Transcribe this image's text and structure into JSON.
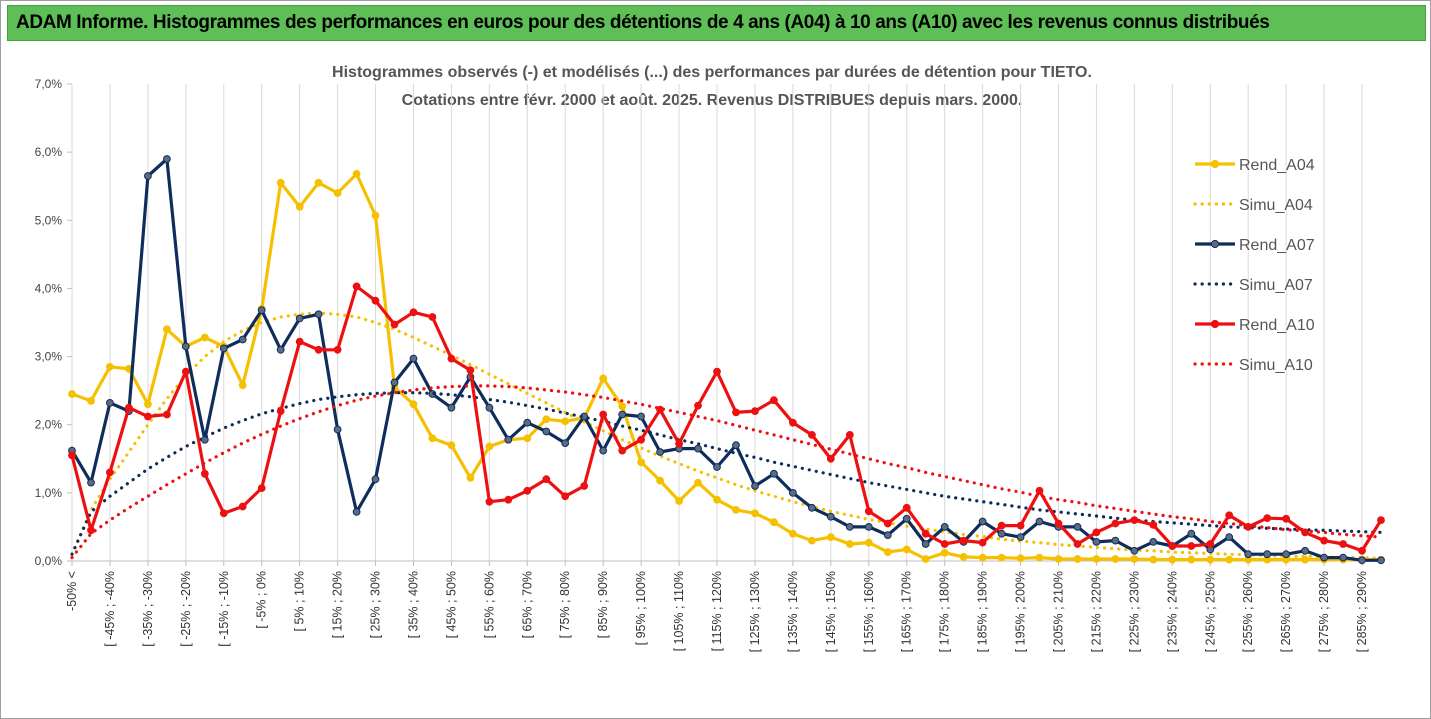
{
  "banner": {
    "title": "ADAM Informe. Histogrammes des performances en euros pour des détentions de 4 ans (A04) à 10 ans (A10) avec les revenus connus distribués"
  },
  "chart_data": {
    "type": "line",
    "title": "Histogrammes observés (-)  et modélisés (...) des performances par durées de détention pour TIETO.",
    "subtitle": "Cotations entre févr. 2000 et août. 2025. Revenus DISTRIBUES depuis mars. 2000.",
    "ylim": [
      0,
      7
    ],
    "yticks": [
      "0,0%",
      "1,0%",
      "2,0%",
      "3,0%",
      "4,0%",
      "5,0%",
      "6,0%",
      "7,0%"
    ],
    "grid": "vertical",
    "legend_position": "right",
    "x": [
      "-50% <",
      "[ -50% ; -45%",
      "[ -45% ; -40%",
      "[ -40% ; -35%",
      "[ -35% ; -30%",
      "[ -30% ; -25%",
      "[ -25% ; -20%",
      "[ -20% ; -15%",
      "[ -15% ; -10%",
      "[ -10% ; -5%",
      "[ -5% ; 0%",
      "[ 0% ; 5%",
      "[ 5% ; 10%",
      "[ 10% ; 15%",
      "[ 15% ; 20%",
      "[ 20% ; 25%",
      "[ 25% ; 30%",
      "[ 30% ; 35%",
      "[ 35% ; 40%",
      "[ 40% ; 45%",
      "[ 45% ; 50%",
      "[ 50% ; 55%",
      "[ 55% ; 60%",
      "[ 60% ; 65%",
      "[ 65% ; 70%",
      "[ 70% ; 75%",
      "[ 75% ; 80%",
      "[ 80% ; 85%",
      "[ 85% ; 90%",
      "[ 90% ; 95%",
      "[ 95% ; 100%",
      "[ 100% ; 105%",
      "[ 105% ; 110%",
      "[ 110% ; 115%",
      "[ 115% ; 120%",
      "[ 120% ; 125%",
      "[ 125% ; 130%",
      "[ 130% ; 135%",
      "[ 135% ; 140%",
      "[ 140% ; 145%",
      "[ 145% ; 150%",
      "[ 150% ; 155%",
      "[ 155% ; 160%",
      "[ 160% ; 165%",
      "[ 165% ; 170%",
      "[ 170% ; 175%",
      "[ 175% ; 180%",
      "[ 180% ; 185%",
      "[ 185% ; 190%",
      "[ 190% ; 195%",
      "[ 195% ; 200%",
      "[ 200% ; 205%",
      "[ 205% ; 210%",
      "[ 210% ; 215%",
      "[ 215% ; 220%",
      "[ 220% ; 225%",
      "[ 225% ; 230%",
      "[ 230% ; 235%",
      "[ 235% ; 240%",
      "[ 240% ; 245%",
      "[ 245% ; 250%",
      "[ 250% ; 255%",
      "[ 255% ; 260%",
      "[ 260% ; 265%",
      "[ 265% ; 270%",
      "[ 270% ; 275%",
      "[ 275% ; 280%",
      "[ 280% ; 285%",
      "[ 285% ; 290%",
      "[ 290% ; 295%"
    ],
    "x_visible_labels": [
      "-50% <",
      "[ -45% ; -40%",
      "[ -35% ; -30%",
      "[ -25% ; -20%",
      "[ -15% ; -10%",
      "[ -5% ; 0%",
      "[ 5% ; 10%",
      "[ 15% ; 20%",
      "[ 25% ; 30%",
      "[ 35% ; 40%",
      "[ 45% ; 50%",
      "[ 55% ; 60%",
      "[ 65% ; 70%",
      "[ 75% ; 80%",
      "[ 85% ; 90%",
      "[ 95% ; 100%",
      "[ 105% ; 110%",
      "[ 115% ; 120%",
      "[ 125% ; 130%",
      "[ 135% ; 140%",
      "[ 145% ; 150%",
      "[ 155% ; 160%",
      "[ 165% ; 170%",
      "[ 175% ; 180%",
      "[ 185% ; 190%",
      "[ 195% ; 200%",
      "[ 205% ; 210%",
      "[ 215% ; 220%",
      "[ 225% ; 230%",
      "[ 235% ; 240%",
      "[ 245% ; 250%",
      "[ 255% ; 260%",
      "[ 265% ; 270%",
      "[ 275% ; 280%",
      "[ 285% ; 290%"
    ],
    "series": [
      {
        "name": "Rend_A04",
        "style": "solid",
        "color": "#f5c000",
        "values": [
          2.45,
          2.35,
          2.85,
          2.82,
          2.3,
          3.4,
          3.15,
          3.28,
          3.15,
          2.58,
          3.7,
          5.55,
          5.2,
          5.55,
          5.4,
          5.68,
          5.07,
          2.55,
          2.3,
          1.8,
          1.7,
          1.22,
          1.68,
          1.78,
          1.8,
          2.08,
          2.05,
          2.1,
          2.68,
          2.27,
          1.45,
          1.18,
          0.88,
          1.15,
          0.9,
          0.75,
          0.7,
          0.57,
          0.4,
          0.3,
          0.35,
          0.25,
          0.27,
          0.13,
          0.17,
          0.03,
          0.12,
          0.06,
          0.05,
          0.05,
          0.04,
          0.05,
          0.03,
          0.03,
          0.03,
          0.03,
          0.03,
          0.02,
          0.02,
          0.02,
          0.02,
          0.02,
          0.02,
          0.02,
          0.02,
          0.02,
          0.02,
          0.02,
          0.02,
          0.02
        ]
      },
      {
        "name": "Simu_A04",
        "style": "dotted",
        "color": "#f5c000",
        "values": [
          0.1,
          0.75,
          1.2,
          1.6,
          2.0,
          2.38,
          2.72,
          3.0,
          3.22,
          3.38,
          3.5,
          3.58,
          3.62,
          3.64,
          3.62,
          3.58,
          3.5,
          3.4,
          3.28,
          3.15,
          3.02,
          2.88,
          2.74,
          2.6,
          2.46,
          2.32,
          2.18,
          2.04,
          1.91,
          1.78,
          1.66,
          1.54,
          1.43,
          1.32,
          1.22,
          1.12,
          1.03,
          0.95,
          0.87,
          0.8,
          0.73,
          0.67,
          0.61,
          0.56,
          0.51,
          0.47,
          0.43,
          0.39,
          0.36,
          0.32,
          0.29,
          0.27,
          0.24,
          0.22,
          0.2,
          0.18,
          0.16,
          0.15,
          0.13,
          0.12,
          0.11,
          0.1,
          0.09,
          0.08,
          0.07,
          0.07,
          0.06,
          0.05,
          0.05,
          0.04
        ]
      },
      {
        "name": "Rend_A07",
        "style": "solid",
        "color": "#0f2d5c",
        "values": [
          1.62,
          1.15,
          2.32,
          2.2,
          5.65,
          5.9,
          3.15,
          1.78,
          3.12,
          3.25,
          3.68,
          3.1,
          3.56,
          3.62,
          1.93,
          0.72,
          1.2,
          2.62,
          2.97,
          2.45,
          2.25,
          2.7,
          2.25,
          1.78,
          2.03,
          1.9,
          1.73,
          2.12,
          1.62,
          2.15,
          2.12,
          1.6,
          1.65,
          1.65,
          1.38,
          1.7,
          1.1,
          1.28,
          1.0,
          0.78,
          0.65,
          0.5,
          0.5,
          0.38,
          0.62,
          0.25,
          0.5,
          0.28,
          0.58,
          0.4,
          0.35,
          0.58,
          0.5,
          0.5,
          0.28,
          0.3,
          0.15,
          0.28,
          0.22,
          0.4,
          0.17,
          0.35,
          0.1,
          0.1,
          0.1,
          0.15,
          0.05,
          0.05,
          0.01,
          0.01
        ]
      },
      {
        "name": "Simu_A07",
        "style": "dotted",
        "color": "#0f2d5c",
        "values": [
          0.1,
          0.72,
          0.95,
          1.15,
          1.35,
          1.52,
          1.68,
          1.82,
          1.95,
          2.06,
          2.16,
          2.24,
          2.31,
          2.37,
          2.41,
          2.44,
          2.46,
          2.47,
          2.47,
          2.46,
          2.44,
          2.41,
          2.37,
          2.33,
          2.28,
          2.23,
          2.17,
          2.11,
          2.05,
          1.98,
          1.92,
          1.85,
          1.78,
          1.72,
          1.65,
          1.58,
          1.52,
          1.45,
          1.39,
          1.33,
          1.27,
          1.21,
          1.15,
          1.1,
          1.05,
          1.0,
          0.95,
          0.91,
          0.87,
          0.83,
          0.79,
          0.75,
          0.72,
          0.69,
          0.66,
          0.63,
          0.6,
          0.58,
          0.56,
          0.54,
          0.52,
          0.5,
          0.49,
          0.48,
          0.47,
          0.46,
          0.45,
          0.44,
          0.43,
          0.42
        ]
      },
      {
        "name": "Rend_A10",
        "style": "solid",
        "color": "#ee1010",
        "values": [
          1.55,
          0.45,
          1.3,
          2.25,
          2.12,
          2.15,
          2.78,
          1.28,
          0.7,
          0.8,
          1.07,
          2.2,
          3.22,
          3.1,
          3.1,
          4.03,
          3.82,
          3.47,
          3.65,
          3.58,
          2.97,
          2.8,
          0.87,
          0.9,
          1.03,
          1.2,
          0.95,
          1.1,
          2.15,
          1.62,
          1.78,
          2.22,
          1.72,
          2.28,
          2.78,
          2.18,
          2.2,
          2.36,
          2.03,
          1.85,
          1.5,
          1.85,
          0.73,
          0.55,
          0.78,
          0.4,
          0.25,
          0.3,
          0.27,
          0.52,
          0.52,
          1.03,
          0.55,
          0.25,
          0.42,
          0.55,
          0.6,
          0.53,
          0.22,
          0.22,
          0.25,
          0.67,
          0.5,
          0.63,
          0.62,
          0.42,
          0.3,
          0.25,
          0.15,
          0.6
        ]
      },
      {
        "name": "Simu_A10",
        "style": "dotted",
        "color": "#ee1010",
        "values": [
          0.05,
          0.4,
          0.6,
          0.78,
          0.95,
          1.12,
          1.28,
          1.44,
          1.59,
          1.73,
          1.86,
          1.98,
          2.09,
          2.19,
          2.28,
          2.36,
          2.42,
          2.47,
          2.51,
          2.54,
          2.56,
          2.57,
          2.57,
          2.56,
          2.54,
          2.51,
          2.48,
          2.44,
          2.4,
          2.35,
          2.3,
          2.24,
          2.18,
          2.12,
          2.06,
          1.99,
          1.92,
          1.85,
          1.78,
          1.71,
          1.64,
          1.57,
          1.5,
          1.43,
          1.37,
          1.3,
          1.24,
          1.18,
          1.12,
          1.06,
          1.01,
          0.95,
          0.9,
          0.86,
          0.81,
          0.77,
          0.73,
          0.69,
          0.65,
          0.62,
          0.58,
          0.55,
          0.52,
          0.49,
          0.46,
          0.44,
          0.42,
          0.39,
          0.37,
          0.35
        ]
      }
    ]
  }
}
